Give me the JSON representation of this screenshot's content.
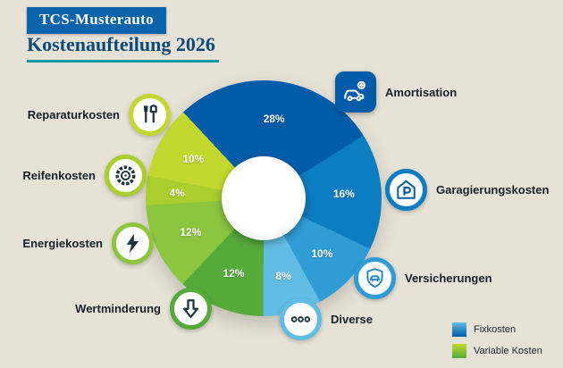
{
  "background_color": "#e7e2d6",
  "header": {
    "brand": "TCS-Musterauto",
    "brand_bg": "#0a64ab",
    "title": "Kostenaufteilung 2026",
    "title_color": "#0b4a7c",
    "underline_color": "#0e9aa4"
  },
  "chart_data": {
    "type": "pie",
    "title": "Kostenaufteilung 2026",
    "unit": "%",
    "start_angle_deg": -43,
    "donut": true,
    "slices": [
      {
        "label": "Amortisation",
        "value": 28,
        "color": "#005ca9",
        "group": "Fixkosten",
        "icon": "car-coin-icon"
      },
      {
        "label": "Garagierungskosten",
        "value": 16,
        "color": "#0d7dc2",
        "group": "Fixkosten",
        "icon": "garage-parking-icon"
      },
      {
        "label": "Versicherungen",
        "value": 10,
        "color": "#2f9cd6",
        "group": "Fixkosten",
        "icon": "shield-car-icon"
      },
      {
        "label": "Diverse",
        "value": 8,
        "color": "#62bde4",
        "group": "Fixkosten",
        "icon": "three-circles-icon"
      },
      {
        "label": "Wertminderung",
        "value": 12,
        "color": "#54ab3a",
        "group": "Variable Kosten",
        "icon": "arrow-down-icon"
      },
      {
        "label": "Energiekosten",
        "value": 12,
        "color": "#8cc63f",
        "group": "Variable Kosten",
        "icon": "lightning-icon"
      },
      {
        "label": "Reifenkosten",
        "value": 4,
        "color": "#a9ce2d",
        "group": "Variable Kosten",
        "icon": "tire-icon"
      },
      {
        "label": "Reparaturkosten",
        "value": 10,
        "color": "#c3d82f",
        "group": "Variable Kosten",
        "icon": "tools-icon"
      }
    ],
    "legend": [
      {
        "label": "Fixkosten",
        "color_top": "#62bde4",
        "color_bottom": "#005ca9"
      },
      {
        "label": "Variable Kosten",
        "color_top": "#c3d82f",
        "color_bottom": "#54ab3a"
      }
    ],
    "legend_position": "bottom-right"
  }
}
